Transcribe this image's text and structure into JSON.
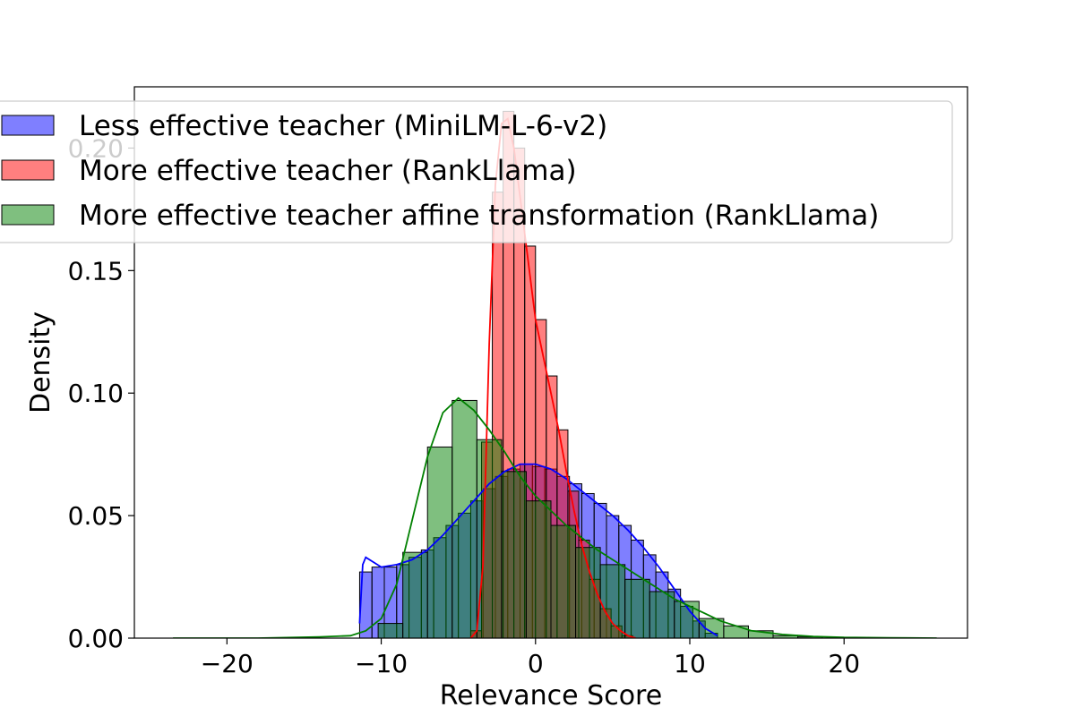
{
  "chart_data": {
    "type": "histogram",
    "xlabel": "Relevance Score",
    "ylabel": "Density",
    "xlim": [
      -26,
      28
    ],
    "ylim": [
      0,
      0.225
    ],
    "xticks": [
      -20,
      -10,
      0,
      10,
      20
    ],
    "yticks": [
      0.0,
      0.05,
      0.1,
      0.15,
      0.2
    ],
    "xtick_labels": [
      "−20",
      "−10",
      "0",
      "10",
      "20"
    ],
    "ytick_labels": [
      "0.00",
      "0.05",
      "0.10",
      "0.15",
      "0.20"
    ],
    "legend_position": "upper-left",
    "series": [
      {
        "name": "Less effective teacher (MiniLM-L-6-v2)",
        "color": "#0000ff",
        "bins": [
          [
            -11.4,
            -10.6,
            0.027
          ],
          [
            -10.6,
            -9.8,
            0.029
          ],
          [
            -9.8,
            -9.0,
            0.029
          ],
          [
            -9.0,
            -8.2,
            0.03
          ],
          [
            -8.2,
            -7.4,
            0.033
          ],
          [
            -7.4,
            -6.6,
            0.036
          ],
          [
            -6.6,
            -5.8,
            0.041
          ],
          [
            -5.8,
            -5.0,
            0.046
          ],
          [
            -5.0,
            -4.2,
            0.051
          ],
          [
            -4.2,
            -3.4,
            0.056
          ],
          [
            -3.4,
            -2.6,
            0.061
          ],
          [
            -2.6,
            -1.8,
            0.066
          ],
          [
            -1.8,
            -1.0,
            0.069
          ],
          [
            -1.0,
            -0.2,
            0.071
          ],
          [
            -0.2,
            0.6,
            0.07
          ],
          [
            0.6,
            1.4,
            0.069
          ],
          [
            1.4,
            2.2,
            0.066
          ],
          [
            2.2,
            3.0,
            0.063
          ],
          [
            3.0,
            3.8,
            0.059
          ],
          [
            3.8,
            4.6,
            0.055
          ],
          [
            4.6,
            5.4,
            0.05
          ],
          [
            5.4,
            6.2,
            0.046
          ],
          [
            6.2,
            7.0,
            0.04
          ],
          [
            7.0,
            7.8,
            0.034
          ],
          [
            7.8,
            8.6,
            0.027
          ],
          [
            8.6,
            9.4,
            0.02
          ],
          [
            9.4,
            10.2,
            0.013
          ],
          [
            10.2,
            11.0,
            0.007
          ],
          [
            11.0,
            11.8,
            0.002
          ]
        ],
        "kde": [
          [
            -11.4,
            0.006
          ],
          [
            -11.2,
            0.03
          ],
          [
            -11.0,
            0.033
          ],
          [
            -10.5,
            0.031
          ],
          [
            -10.0,
            0.029
          ],
          [
            -9.0,
            0.03
          ],
          [
            -8.0,
            0.032
          ],
          [
            -7.0,
            0.036
          ],
          [
            -6.0,
            0.042
          ],
          [
            -5.0,
            0.049
          ],
          [
            -4.0,
            0.056
          ],
          [
            -3.0,
            0.063
          ],
          [
            -2.0,
            0.068
          ],
          [
            -1.0,
            0.071
          ],
          [
            0.0,
            0.071
          ],
          [
            1.0,
            0.069
          ],
          [
            2.0,
            0.065
          ],
          [
            3.0,
            0.06
          ],
          [
            4.0,
            0.055
          ],
          [
            5.0,
            0.05
          ],
          [
            6.0,
            0.044
          ],
          [
            7.0,
            0.037
          ],
          [
            8.0,
            0.029
          ],
          [
            9.0,
            0.02
          ],
          [
            10.0,
            0.011
          ],
          [
            11.0,
            0.004
          ],
          [
            11.8,
            0.001
          ]
        ]
      },
      {
        "name": "More effective teacher (RankLlama)",
        "color": "#ff0000",
        "bins": [
          [
            -4.2,
            -3.5,
            0.003
          ],
          [
            -3.5,
            -2.8,
            0.08
          ],
          [
            -2.8,
            -2.1,
            0.182
          ],
          [
            -2.1,
            -1.4,
            0.215
          ],
          [
            -1.4,
            -0.7,
            0.2
          ],
          [
            -0.7,
            0.0,
            0.16
          ],
          [
            0.0,
            0.7,
            0.13
          ],
          [
            0.7,
            1.4,
            0.107
          ],
          [
            1.4,
            2.1,
            0.085
          ],
          [
            2.1,
            2.8,
            0.06
          ],
          [
            2.8,
            3.5,
            0.04
          ],
          [
            3.5,
            4.2,
            0.024
          ],
          [
            4.2,
            4.9,
            0.012
          ],
          [
            4.9,
            5.6,
            0.005
          ],
          [
            5.6,
            6.3,
            0.001
          ]
        ],
        "kde": [
          [
            -4.2,
            0.0
          ],
          [
            -3.8,
            0.003
          ],
          [
            -3.4,
            0.03
          ],
          [
            -3.0,
            0.12
          ],
          [
            -2.6,
            0.185
          ],
          [
            -2.2,
            0.21
          ],
          [
            -1.8,
            0.212
          ],
          [
            -1.4,
            0.2
          ],
          [
            -1.0,
            0.18
          ],
          [
            -0.5,
            0.155
          ],
          [
            0.0,
            0.13
          ],
          [
            0.5,
            0.115
          ],
          [
            1.0,
            0.1
          ],
          [
            1.5,
            0.085
          ],
          [
            2.0,
            0.068
          ],
          [
            2.5,
            0.052
          ],
          [
            3.0,
            0.038
          ],
          [
            3.5,
            0.027
          ],
          [
            4.0,
            0.018
          ],
          [
            4.5,
            0.011
          ],
          [
            5.0,
            0.006
          ],
          [
            5.5,
            0.003
          ],
          [
            6.0,
            0.001
          ],
          [
            6.5,
            0.0
          ]
        ]
      },
      {
        "name": "More effective teacher affine transformation (RankLlama)",
        "color": "#008000",
        "bins": [
          [
            -10.2,
            -8.6,
            0.006
          ],
          [
            -8.6,
            -7.0,
            0.035
          ],
          [
            -7.0,
            -5.4,
            0.078
          ],
          [
            -5.4,
            -3.8,
            0.097
          ],
          [
            -3.8,
            -2.2,
            0.081
          ],
          [
            -2.2,
            -0.6,
            0.068
          ],
          [
            -0.6,
            1.0,
            0.056
          ],
          [
            1.0,
            2.6,
            0.046
          ],
          [
            2.6,
            4.2,
            0.037
          ],
          [
            4.2,
            5.8,
            0.03
          ],
          [
            5.8,
            7.4,
            0.024
          ],
          [
            7.4,
            9.0,
            0.019
          ],
          [
            9.0,
            10.6,
            0.015
          ],
          [
            10.6,
            12.2,
            0.008
          ],
          [
            12.2,
            13.8,
            0.005
          ],
          [
            13.8,
            15.4,
            0.003
          ],
          [
            15.4,
            17.0,
            0.001
          ],
          [
            17.0,
            18.6,
            0.0005
          ]
        ],
        "kde": [
          [
            -23.5,
            0.0
          ],
          [
            -18.0,
            0.0
          ],
          [
            -14.0,
            0.0005
          ],
          [
            -12.0,
            0.001
          ],
          [
            -11.0,
            0.003
          ],
          [
            -10.0,
            0.008
          ],
          [
            -9.0,
            0.022
          ],
          [
            -8.0,
            0.048
          ],
          [
            -7.0,
            0.074
          ],
          [
            -6.0,
            0.092
          ],
          [
            -5.0,
            0.098
          ],
          [
            -4.0,
            0.093
          ],
          [
            -3.0,
            0.085
          ],
          [
            -2.0,
            0.076
          ],
          [
            -1.0,
            0.066
          ],
          [
            0.0,
            0.058
          ],
          [
            1.0,
            0.052
          ],
          [
            2.0,
            0.046
          ],
          [
            3.0,
            0.041
          ],
          [
            4.0,
            0.036
          ],
          [
            5.0,
            0.032
          ],
          [
            6.0,
            0.028
          ],
          [
            7.0,
            0.024
          ],
          [
            8.0,
            0.02
          ],
          [
            9.0,
            0.016
          ],
          [
            10.0,
            0.013
          ],
          [
            11.0,
            0.01
          ],
          [
            12.0,
            0.007
          ],
          [
            13.0,
            0.005
          ],
          [
            14.0,
            0.003
          ],
          [
            16.0,
            0.0015
          ],
          [
            18.0,
            0.0007
          ],
          [
            20.0,
            0.0003
          ],
          [
            23.0,
            0.0001
          ],
          [
            26.0,
            0.0
          ]
        ]
      }
    ]
  }
}
